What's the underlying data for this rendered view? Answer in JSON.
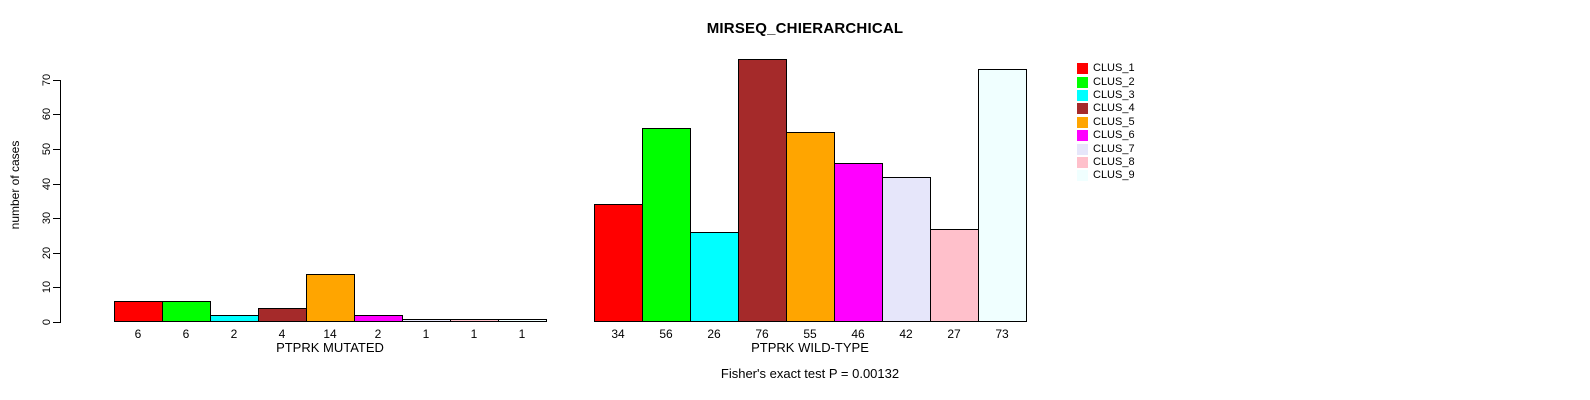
{
  "title": "MIRSEQ_CHIERARCHICAL",
  "footer": "Fisher's exact test P = 0.00132",
  "chart_data": {
    "type": "bar",
    "title": "MIRSEQ_CHIERARCHICAL",
    "ylabel": "number of cases",
    "ylim": [
      0,
      78
    ],
    "yticks": [
      0,
      10,
      20,
      30,
      40,
      50,
      60,
      70
    ],
    "grid": false,
    "legend_position": "right",
    "series_labels": [
      "CLUS_1",
      "CLUS_2",
      "CLUS_3",
      "CLUS_4",
      "CLUS_5",
      "CLUS_6",
      "CLUS_7",
      "CLUS_8",
      "CLUS_9"
    ],
    "colors": [
      "#FF0000",
      "#00FF00",
      "#00FFFF",
      "#A52A2A",
      "#FFA500",
      "#FF00FF",
      "#E6E6FA",
      "#FFC0CB",
      "#F0FFFF"
    ],
    "groups": [
      {
        "xlabel": "PTPRK MUTATED",
        "values": [
          6,
          6,
          2,
          4,
          14,
          2,
          1,
          1,
          1
        ]
      },
      {
        "xlabel": "PTPRK WILD-TYPE",
        "values": [
          34,
          56,
          26,
          76,
          55,
          46,
          42,
          27,
          73
        ]
      }
    ],
    "annotation": "Fisher's exact test P = 0.00132"
  }
}
